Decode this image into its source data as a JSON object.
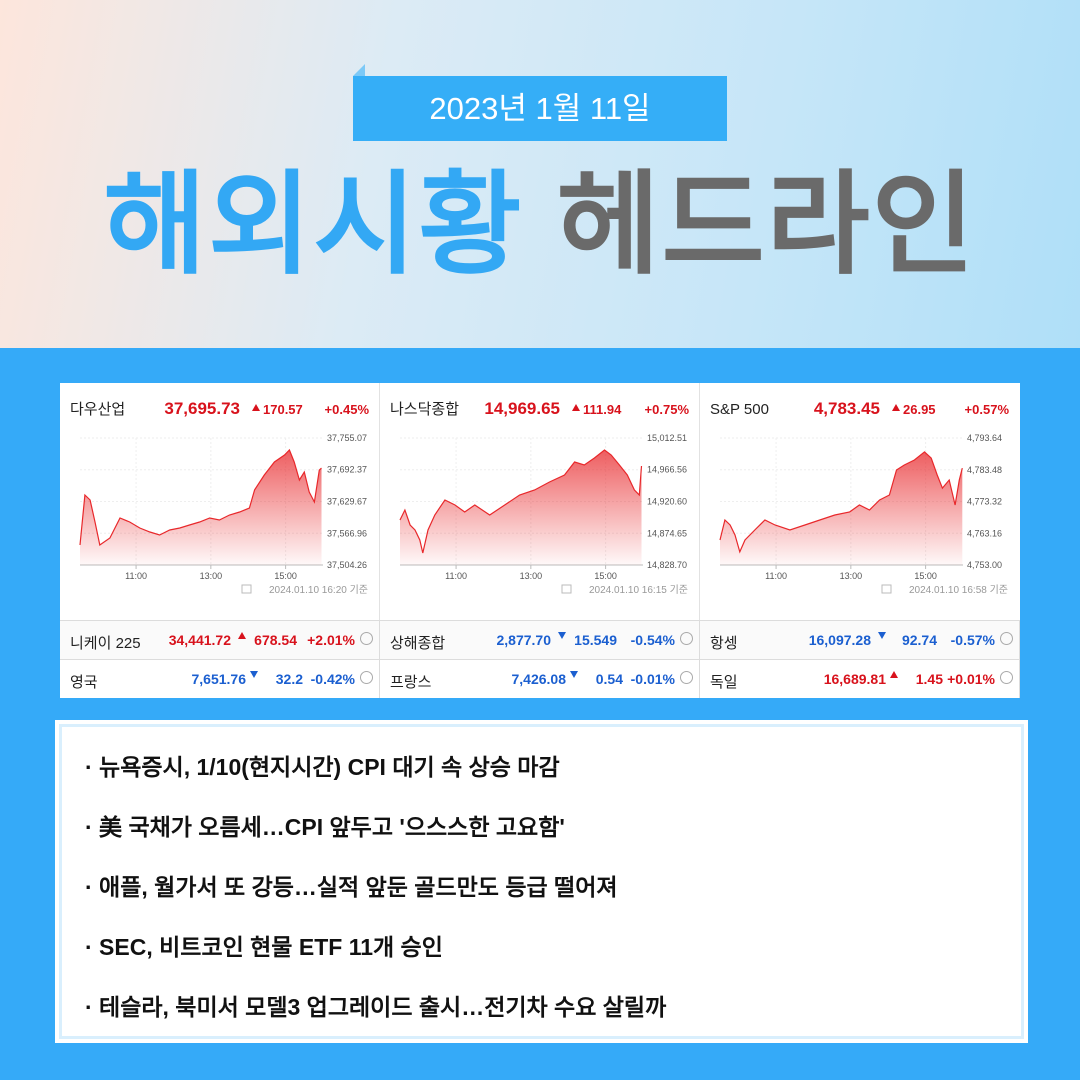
{
  "header": {
    "date": "2023년 1월 11일",
    "title_blue": "해외시황",
    "title_gray": "헤드라인"
  },
  "chart_data": [
    {
      "type": "area",
      "title": "다우산업",
      "price": "37,695.73",
      "change": "170.57",
      "percent": "+0.45%",
      "direction": "up",
      "timestamp": "2024.01.10 16:20 기준",
      "color": "#e8282b",
      "x": [
        9.5,
        9.63,
        9.77,
        9.9,
        10.03,
        10.3,
        10.57,
        10.83,
        11.1,
        11.37,
        11.63,
        11.9,
        12.17,
        12.43,
        12.7,
        12.97,
        13.23,
        13.5,
        13.77,
        14.03,
        14.17,
        14.43,
        14.7,
        14.97,
        15.1,
        15.23,
        15.37,
        15.5,
        15.63,
        15.77,
        15.9,
        15.96
      ],
      "values": [
        37543.8,
        37642.5,
        37632.6,
        37589.2,
        37543.8,
        37557.6,
        37597.1,
        37589.2,
        37577.3,
        37569.4,
        37563.5,
        37573.4,
        37577.3,
        37583.2,
        37589.2,
        37597.1,
        37593.1,
        37603.0,
        37608.9,
        37616.8,
        37652.5,
        37682.0,
        37707.7,
        37721.5,
        37731.4,
        37707.7,
        37672.1,
        37687.9,
        37648.4,
        37628.7,
        37691.9,
        37695.7
      ],
      "xlim": [
        9.5,
        16
      ],
      "xticks": [
        {
          "value": 11,
          "label": "11:00"
        },
        {
          "value": 13,
          "label": "13:00"
        },
        {
          "value": 15,
          "label": "15:00"
        }
      ],
      "ylim": [
        37504.26,
        37755.07
      ],
      "yticks": [
        {
          "value": 37755.07,
          "label": "37,755.07"
        },
        {
          "value": 37692.37,
          "label": "37,692.37"
        },
        {
          "value": 37629.67,
          "label": "37,629.67"
        },
        {
          "value": 37566.96,
          "label": "37,566.96"
        },
        {
          "value": 37504.26,
          "label": "37,504.26"
        }
      ]
    },
    {
      "type": "area",
      "title": "나스닥종합",
      "price": "14,969.65",
      "change": "111.94",
      "percent": "+0.75%",
      "direction": "up",
      "timestamp": "2024.01.10 16:15 기준",
      "color": "#e8282b",
      "x": [
        9.5,
        9.63,
        9.77,
        9.9,
        10.03,
        10.11,
        10.25,
        10.43,
        10.7,
        10.97,
        11.23,
        11.5,
        11.9,
        12.3,
        12.7,
        13.1,
        13.5,
        13.9,
        14.17,
        14.43,
        14.7,
        14.97,
        15.15,
        15.37,
        15.58,
        15.77,
        15.9,
        15.96
      ],
      "values": [
        14893.8,
        14908.3,
        14886.6,
        14879.4,
        14864.9,
        14846.1,
        14879.4,
        14901.1,
        14922.8,
        14915.6,
        14905.4,
        14915.6,
        14901.1,
        14915.6,
        14930.0,
        14937.3,
        14948.9,
        14959.0,
        14977.8,
        14973.4,
        14983.6,
        14995.1,
        14987.9,
        14973.4,
        14959.0,
        14937.3,
        14930.0,
        14972.0
      ],
      "xlim": [
        9.5,
        16
      ],
      "xticks": [
        {
          "value": 11,
          "label": "11:00"
        },
        {
          "value": 13,
          "label": "13:00"
        },
        {
          "value": 15,
          "label": "15:00"
        }
      ],
      "ylim": [
        14828.7,
        15012.51
      ],
      "yticks": [
        {
          "value": 15012.51,
          "label": "15,012.51"
        },
        {
          "value": 14966.56,
          "label": "14,966.56"
        },
        {
          "value": 14920.6,
          "label": "14,920.60"
        },
        {
          "value": 14874.65,
          "label": "14,874.65"
        },
        {
          "value": 14828.7,
          "label": "14,828.70"
        }
      ]
    },
    {
      "type": "area",
      "title": "S&P 500",
      "price": "4,783.45",
      "change": "26.95",
      "percent": "+0.57%",
      "direction": "up",
      "timestamp": "2024.01.10 16:58 기준",
      "color": "#e8282b",
      "x": [
        9.5,
        9.63,
        9.77,
        9.9,
        10.03,
        10.17,
        10.43,
        10.7,
        10.97,
        11.37,
        11.77,
        12.17,
        12.57,
        12.97,
        13.23,
        13.5,
        13.77,
        14.03,
        14.22,
        14.43,
        14.7,
        14.97,
        15.15,
        15.31,
        15.45,
        15.63,
        15.79,
        15.9,
        15.98
      ],
      "values": [
        4761.0,
        4767.4,
        4765.8,
        4762.6,
        4757.2,
        4761.0,
        4764.2,
        4767.4,
        4765.8,
        4764.2,
        4765.8,
        4767.4,
        4769.0,
        4770.0,
        4772.2,
        4770.6,
        4773.8,
        4775.4,
        4783.4,
        4785.0,
        4786.6,
        4789.2,
        4787.2,
        4781.8,
        4777.6,
        4780.2,
        4772.2,
        4780.2,
        4784.0
      ],
      "xlim": [
        9.5,
        16
      ],
      "xticks": [
        {
          "value": 11,
          "label": "11:00"
        },
        {
          "value": 13,
          "label": "13:00"
        },
        {
          "value": 15,
          "label": "15:00"
        }
      ],
      "ylim": [
        4753.0,
        4793.64
      ],
      "yticks": [
        {
          "value": 4793.64,
          "label": "4,793.64"
        },
        {
          "value": 4783.48,
          "label": "4,783.48"
        },
        {
          "value": 4773.32,
          "label": "4,773.32"
        },
        {
          "value": 4763.16,
          "label": "4,763.16"
        },
        {
          "value": 4753.0,
          "label": "4,753.00"
        }
      ]
    }
  ],
  "indices": [
    [
      {
        "name": "니케이 225",
        "price": "34,441.72",
        "change": "678.54",
        "percent": "+2.01%",
        "direction": "up"
      },
      {
        "name": "상해종합",
        "price": "2,877.70",
        "change": "15.549",
        "percent": "-0.54%",
        "direction": "down"
      },
      {
        "name": "항셍",
        "price": "16,097.28",
        "change": "92.74",
        "percent": "-0.57%",
        "direction": "down"
      }
    ],
    [
      {
        "name": "영국",
        "price": "7,651.76",
        "change": "32.2",
        "percent": "-0.42%",
        "direction": "down"
      },
      {
        "name": "프랑스",
        "price": "7,426.08",
        "change": "0.54",
        "percent": "-0.01%",
        "direction": "down"
      },
      {
        "name": "독일",
        "price": "16,689.81",
        "change": "1.45",
        "percent": "+0.01%",
        "direction": "up"
      }
    ]
  ],
  "headlines": [
    "· 뉴욕증시, 1/10(현지시간) CPI 대기 속 상승 마감",
    "· 美 국채가 오름세…CPI 앞두고 '으스스한 고요함'",
    "· 애플, 월가서 또 강등…실적 앞둔 골드만도 등급 떨어져",
    "· SEC, 비트코인 현물 ETF 11개 승인",
    "· 테슬라, 북미서 모델3 업그레이드 출시…전기차 수요 살릴까"
  ]
}
